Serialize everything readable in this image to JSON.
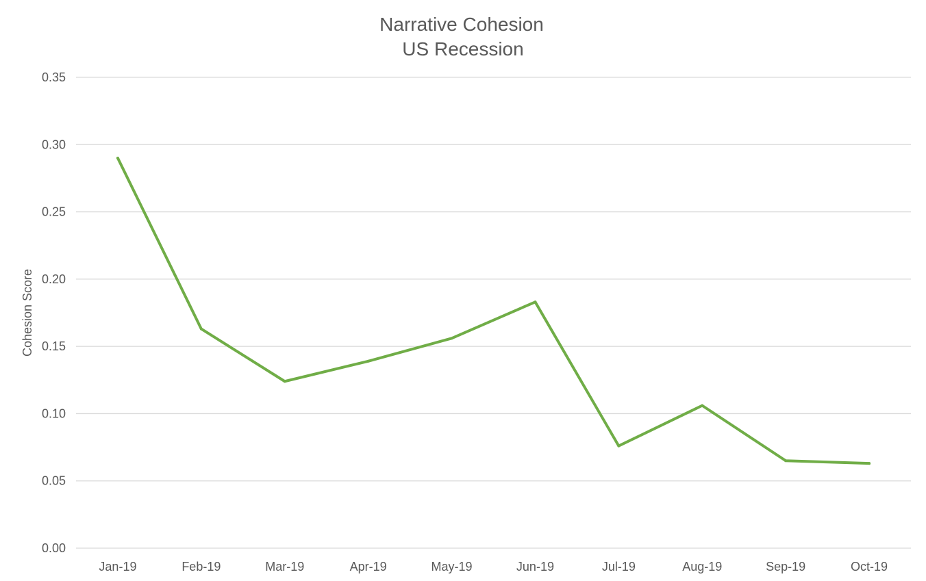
{
  "chart_data": {
    "type": "line",
    "title": "Narrative Cohesion",
    "subtitle": "US Recession",
    "xlabel": "",
    "ylabel": "Cohesion Score",
    "categories": [
      "Jan-19",
      "Feb-19",
      "Mar-19",
      "Apr-19",
      "May-19",
      "Jun-19",
      "Jul-19",
      "Aug-19",
      "Sep-19",
      "Oct-19"
    ],
    "series": [
      {
        "color": "#70ad47",
        "values": [
          0.29,
          0.163,
          0.124,
          0.139,
          0.156,
          0.183,
          0.076,
          0.106,
          0.065,
          0.063
        ]
      }
    ],
    "ylim": [
      0,
      0.35
    ],
    "yticks": [
      "0.00",
      "0.05",
      "0.10",
      "0.15",
      "0.20",
      "0.25",
      "0.30",
      "0.35"
    ],
    "grid": true,
    "legend": "none",
    "colors": {
      "text": "#595959",
      "grid": "#d9d9d9"
    }
  }
}
